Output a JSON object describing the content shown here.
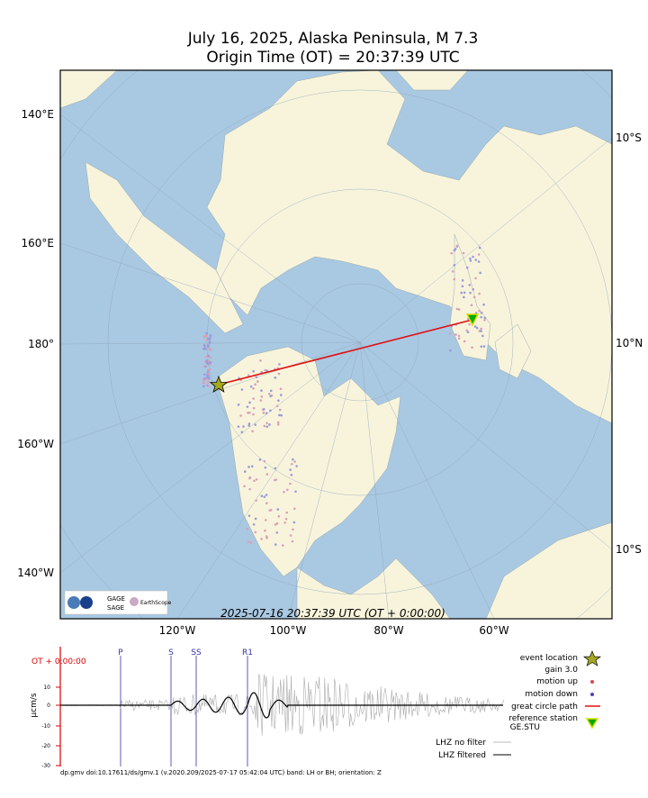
{
  "title": [
    "July 16, 2025, Alaska Peninsula, M 7.3",
    "Origin Time (OT) = 20:37:39 UTC"
  ],
  "map": {
    "left_labels": [
      "140°E",
      "160°E",
      "180°",
      "160°W",
      "140°W"
    ],
    "right_labels": [
      "10°S",
      "10°N",
      "10°S"
    ],
    "bottom_labels": [
      "120°W",
      "100°W",
      "80°W",
      "60°W"
    ],
    "time_label": "2025-07-16 20:37:39 UTC (OT + 0:00:00)",
    "logos": [
      "GAGE",
      "SAGE",
      "EarthScope"
    ]
  },
  "seismogram": {
    "ot_label": "OT + 0:00:00",
    "y_label": "µcm/s",
    "yticks": [
      "10",
      "0",
      "-10",
      "-20",
      "-30"
    ],
    "phases": [
      "P",
      "S",
      "SS",
      "R1"
    ],
    "legend": [
      "event location",
      "gain  3.0",
      "motion up",
      "motion down",
      "great circle path",
      "reference station",
      "GE.STU",
      "LHZ no filter",
      "LHZ filtered"
    ],
    "footer": "dp.gmv doi:10.17611/ds/gmv.1 (v.2020.209/2025-07-17 05:42:04 UTC) band: LH or BH; orientation: Z"
  }
}
